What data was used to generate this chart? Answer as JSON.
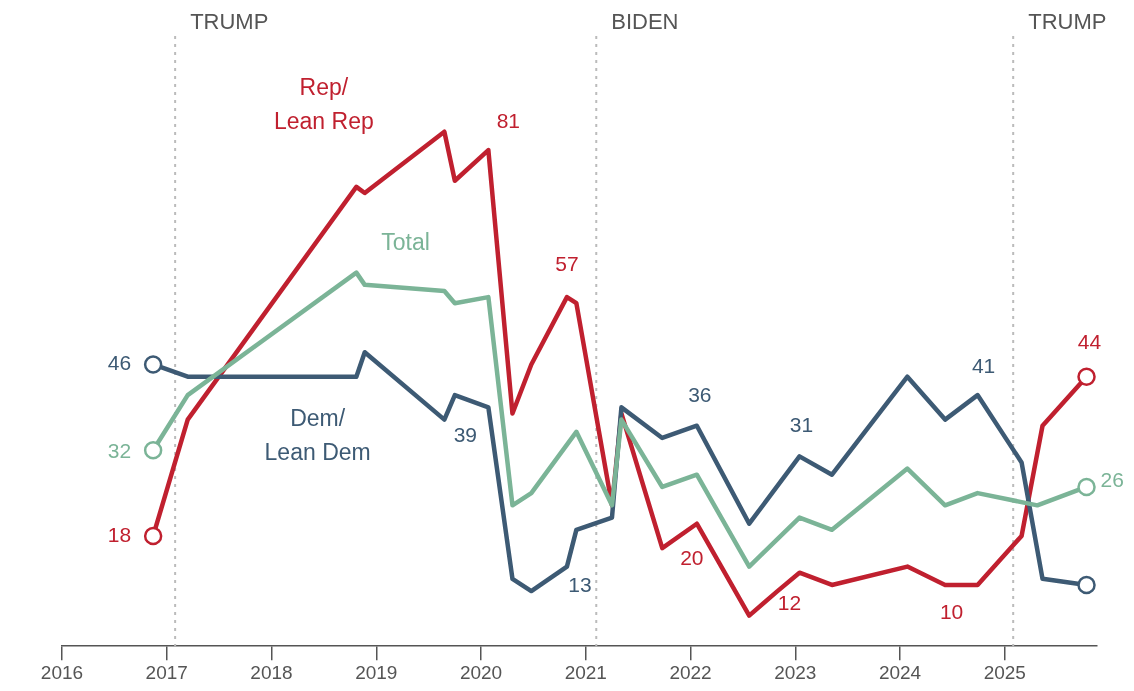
{
  "chart_data": {
    "type": "line",
    "series": [
      {
        "name": "Rep/\nLean Rep",
        "color": "#c0202f",
        "x": [
          2016.87,
          2017.2,
          2018.81,
          2018.89,
          2019.65,
          2019.75,
          2020.07,
          2020.3,
          2020.48,
          2020.82,
          2020.91,
          2021.25,
          2021.34,
          2021.73,
          2022.06,
          2022.56,
          2022.83,
          2023.04,
          2023.35,
          2024.07,
          2024.43,
          2024.74,
          2025.16,
          2025.36,
          2025.78
        ],
        "values": [
          18,
          37,
          75,
          74,
          84,
          76,
          81,
          38,
          46,
          57,
          56,
          23,
          38,
          16,
          20,
          5,
          9,
          12,
          10,
          13,
          10,
          10,
          18,
          36,
          44
        ],
        "value_labels": [
          "18",
          null,
          null,
          null,
          null,
          null,
          "81",
          null,
          null,
          "57",
          null,
          null,
          null,
          null,
          "20",
          null,
          null,
          "12",
          null,
          null,
          null,
          "10",
          null,
          null,
          "44"
        ]
      },
      {
        "name": "Dem/\nLean Dem",
        "color": "#3d5a74",
        "x": [
          2016.87,
          2017.2,
          2018.81,
          2018.89,
          2019.65,
          2019.75,
          2020.07,
          2020.3,
          2020.48,
          2020.82,
          2020.91,
          2021.25,
          2021.34,
          2021.73,
          2022.06,
          2022.56,
          2023.04,
          2023.35,
          2024.07,
          2024.43,
          2024.74,
          2025.16,
          2025.36,
          2025.78
        ],
        "values": [
          46,
          44,
          44,
          48,
          37,
          41,
          39,
          11,
          9,
          13,
          19,
          21,
          39,
          34,
          36,
          20,
          31,
          28,
          44,
          37,
          41,
          30,
          11,
          10
        ],
        "value_labels": [
          "46",
          null,
          null,
          null,
          null,
          null,
          "39",
          null,
          null,
          "13",
          null,
          null,
          null,
          null,
          "36",
          null,
          "31",
          null,
          null,
          null,
          "41",
          null,
          null,
          null
        ]
      },
      {
        "name": "Total",
        "color": "#7bb497",
        "x": [
          2016.87,
          2017.2,
          2018.81,
          2018.89,
          2019.65,
          2019.75,
          2020.07,
          2020.3,
          2020.48,
          2020.91,
          2021.25,
          2021.34,
          2021.73,
          2022.06,
          2022.56,
          2023.04,
          2023.35,
          2024.07,
          2024.43,
          2024.74,
          2025.31,
          2025.78
        ],
        "values": [
          32,
          41,
          61,
          59,
          58,
          56,
          57,
          23,
          25,
          35,
          23,
          37,
          26,
          28,
          13,
          21,
          19,
          29,
          23,
          25,
          23,
          26
        ],
        "value_labels": [
          "32",
          null,
          null,
          null,
          null,
          null,
          null,
          null,
          null,
          null,
          null,
          null,
          null,
          null,
          null,
          null,
          null,
          null,
          null,
          null,
          null,
          "26"
        ]
      }
    ],
    "xlim": [
      2016,
      2025.88
    ],
    "xticks": [
      2016,
      2017,
      2018,
      2019,
      2020,
      2021,
      2022,
      2023,
      2024,
      2025
    ],
    "tick_labels": "x",
    "grid": false,
    "legend": false,
    "line_style": "solid",
    "ref_lines": [
      {
        "axis": "x",
        "value": 2017.08,
        "label": "TRUMP",
        "color": "#bbbbbb",
        "line_style": "dotted"
      },
      {
        "axis": "x",
        "value": 2021.1,
        "label": "BIDEN",
        "color": "#bbbbbb",
        "line_style": "dotted"
      },
      {
        "axis": "x",
        "value": 2025.08,
        "label": "TRUMP",
        "color": "#bbbbbb",
        "line_style": "dotted"
      }
    ]
  }
}
